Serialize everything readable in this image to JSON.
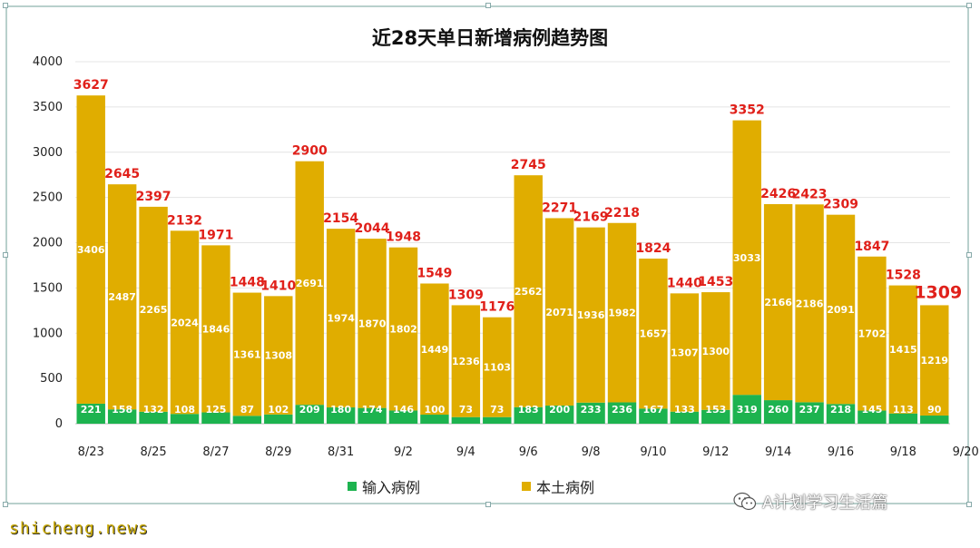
{
  "chart_data": {
    "type": "bar",
    "stacked": true,
    "title": "近28天单日新增病例趋势图",
    "xlabel": "",
    "ylabel": "",
    "ylim": [
      0,
      4000
    ],
    "yticks": [
      0,
      500,
      1000,
      1500,
      2000,
      2500,
      3000,
      3500,
      4000
    ],
    "grid": true,
    "legend_position": "bottom",
    "categories": [
      "8/23",
      "8/24",
      "8/25",
      "8/26",
      "8/27",
      "8/28",
      "8/29",
      "8/30",
      "8/31",
      "9/1",
      "9/2",
      "9/3",
      "9/4",
      "9/5",
      "9/6",
      "9/7",
      "9/8",
      "9/9",
      "9/10",
      "9/11",
      "9/12",
      "9/13",
      "9/14",
      "9/15",
      "9/16",
      "9/17",
      "9/18",
      "9/19"
    ],
    "tick_labels": [
      "8/23",
      "8/25",
      "8/27",
      "8/29",
      "8/31",
      "9/2",
      "9/4",
      "9/6",
      "9/8",
      "9/10",
      "9/12",
      "9/14",
      "9/16",
      "9/18",
      "9/20"
    ],
    "series": [
      {
        "name": "输入病例",
        "color": "#1db34f",
        "values": [
          221,
          158,
          132,
          108,
          125,
          87,
          102,
          209,
          180,
          174,
          146,
          100,
          73,
          73,
          183,
          200,
          233,
          236,
          167,
          133,
          153,
          319,
          260,
          237,
          218,
          145,
          113,
          90
        ]
      },
      {
        "name": "本土病例",
        "color": "#e0ad00",
        "values": [
          3406,
          2487,
          2265,
          2024,
          1846,
          1361,
          1308,
          2691,
          1974,
          1870,
          1802,
          1449,
          1236,
          1103,
          2562,
          2071,
          1936,
          1982,
          1657,
          1307,
          1300,
          3033,
          2166,
          2186,
          2091,
          1702,
          1415,
          1219
        ]
      }
    ],
    "totals": [
      3627,
      2645,
      2397,
      2132,
      1971,
      1448,
      1410,
      2900,
      2154,
      2044,
      1948,
      1549,
      1309,
      1176,
      2745,
      2271,
      2169,
      2218,
      1824,
      1440,
      1453,
      3352,
      2426,
      2423,
      2309,
      1847,
      1528,
      1309
    ],
    "total_label_color": "#e0201a"
  },
  "watermark": "A计划学习生活篇",
  "source_stamp": "shicheng.news"
}
